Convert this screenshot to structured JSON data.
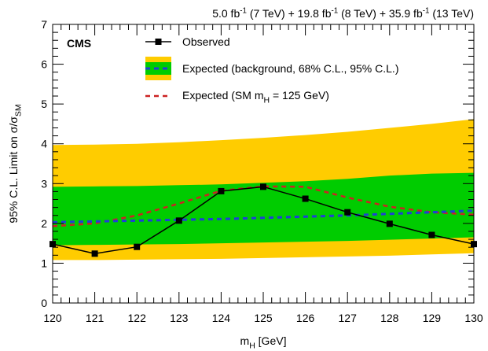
{
  "chart_data": {
    "type": "line",
    "lumi_label_parts": [
      "5.0 fb",
      "-1",
      " (7 TeV) + 19.8 fb",
      "-1",
      " (8 TeV) + 35.9 fb",
      "-1",
      " (13 TeV)"
    ],
    "experiment_label": "CMS",
    "xlabel_parts": [
      "m",
      "H",
      " [GeV]"
    ],
    "ylabel_parts": [
      "95% C.L. Limit on σ/σ",
      "SM"
    ],
    "x": [
      120,
      121,
      122,
      123,
      124,
      125,
      126,
      127,
      128,
      129,
      130
    ],
    "xlim": [
      120,
      130
    ],
    "xticks": [
      120,
      121,
      122,
      123,
      124,
      125,
      126,
      127,
      128,
      129,
      130
    ],
    "ylim": [
      0,
      7
    ],
    "yticks": [
      0,
      1,
      2,
      3,
      4,
      5,
      6,
      7
    ],
    "series": [
      {
        "name": "Observed",
        "color": "#000000",
        "style": "solid",
        "marker": "square",
        "values": [
          1.48,
          1.24,
          1.41,
          2.07,
          2.81,
          2.92,
          2.62,
          2.28,
          1.99,
          1.71,
          1.48
        ]
      },
      {
        "name": "Expected (background, 68% C.L., 95% C.L.)",
        "color": "#1f3fd6",
        "style": "dashed",
        "values": [
          2.03,
          2.05,
          2.07,
          2.09,
          2.11,
          2.14,
          2.17,
          2.2,
          2.24,
          2.28,
          2.32
        ],
        "band95": {
          "color": "#ffcc00",
          "lower": [
            1.08,
            1.08,
            1.09,
            1.1,
            1.11,
            1.13,
            1.15,
            1.17,
            1.19,
            1.22,
            1.25
          ],
          "upper": [
            3.97,
            3.98,
            4.0,
            4.04,
            4.09,
            4.15,
            4.22,
            4.3,
            4.4,
            4.5,
            4.62
          ]
        },
        "band68": {
          "color": "#00cc00",
          "lower": [
            1.45,
            1.46,
            1.47,
            1.48,
            1.5,
            1.52,
            1.54,
            1.56,
            1.59,
            1.62,
            1.65
          ],
          "upper": [
            2.92,
            2.93,
            2.94,
            2.96,
            2.98,
            3.02,
            3.06,
            3.12,
            3.2,
            3.25,
            3.27
          ]
        }
      },
      {
        "name_parts": [
          "Expected (SM m",
          "H",
          " = 125 GeV)"
        ],
        "color": "#cc2222",
        "style": "dashed",
        "values": [
          1.93,
          2.0,
          2.2,
          2.5,
          2.82,
          2.93,
          2.92,
          2.65,
          2.42,
          2.28,
          2.22
        ]
      }
    ]
  }
}
